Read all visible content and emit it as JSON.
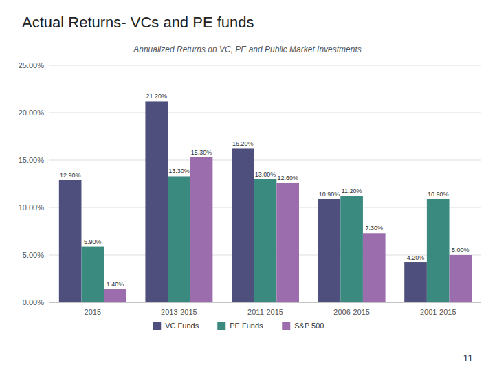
{
  "chart_data": {
    "type": "bar",
    "title": "Actual Returns- VCs and PE funds",
    "subtitle": "Annualized Returns on VC, PE and Public Market Investments",
    "categories": [
      "2015",
      "2013-2015",
      "2011-2015",
      "2006-2015",
      "2001-2015"
    ],
    "series": [
      {
        "name": "VC Funds",
        "color": "#4e4f7c",
        "values": [
          12.9,
          21.2,
          16.2,
          10.9,
          4.2
        ],
        "value_labels": [
          "12.90%",
          "21.20%",
          "16.20%",
          "10.90%",
          "4.20%"
        ]
      },
      {
        "name": "PE Funds",
        "color": "#3a8a80",
        "values": [
          5.9,
          13.3,
          13.0,
          11.2,
          10.9
        ],
        "value_labels": [
          "5.90%",
          "13.30%",
          "13.00%",
          "11.20%",
          "10.90%"
        ]
      },
      {
        "name": "S&P 500",
        "color": "#9b6dac",
        "values": [
          1.4,
          15.3,
          12.6,
          7.3,
          5.0
        ],
        "value_labels": [
          "1.40%",
          "15.30%",
          "12.60%",
          "7.30%",
          "5.00%"
        ]
      }
    ],
    "ylim": [
      0,
      25
    ],
    "yticks": [
      {
        "value": 0,
        "label": "0.00%"
      },
      {
        "value": 5,
        "label": "5.00%"
      },
      {
        "value": 10,
        "label": "10.00%"
      },
      {
        "value": 15,
        "label": "15.00%"
      },
      {
        "value": 20,
        "label": "20.00%"
      },
      {
        "value": 25,
        "label": "25.00%"
      }
    ],
    "grid": true,
    "data_labels": true,
    "legend": "bottom",
    "annotations": [
      "11"
    ]
  }
}
